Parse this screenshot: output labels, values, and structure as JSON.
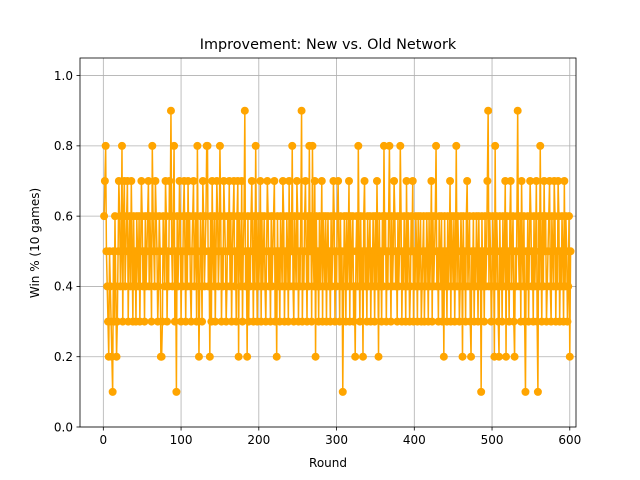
{
  "chart_data": {
    "type": "line",
    "title": "Improvement: New vs. Old Network",
    "xlabel": "Round",
    "ylabel": "Win % (10 games)",
    "xlim": [
      -30,
      608
    ],
    "ylim": [
      0.0,
      1.05
    ],
    "xticks": [
      0,
      100,
      200,
      300,
      400,
      500,
      600
    ],
    "yticks": [
      0.0,
      0.2,
      0.4,
      0.6,
      0.8,
      1.0
    ],
    "xtick_labels": [
      "0",
      "100",
      "200",
      "300",
      "400",
      "500",
      "600"
    ],
    "ytick_labels": [
      "0.0",
      "0.2",
      "0.4",
      "0.6",
      "0.8",
      "1.0"
    ],
    "grid": true,
    "series": [
      {
        "color": "#ffa500",
        "marker": "circle",
        "x_start": 1,
        "x_step": 1,
        "values": [
          0.6,
          0.7,
          0.8,
          0.5,
          0.4,
          0.3,
          0.2,
          0.5,
          0.4,
          0.3,
          0.2,
          0.1,
          0.5,
          0.3,
          0.6,
          0.4,
          0.2,
          0.3,
          0.5,
          0.7,
          0.6,
          0.4,
          0.5,
          0.8,
          0.3,
          0.6,
          0.7,
          0.4,
          0.5,
          0.6,
          0.7,
          0.3,
          0.5,
          0.6,
          0.4,
          0.7,
          0.5,
          0.3,
          0.6,
          0.4,
          0.5,
          0.3,
          0.6,
          0.5,
          0.4,
          0.6,
          0.3,
          0.5,
          0.7,
          0.6,
          0.4,
          0.5,
          0.3,
          0.6,
          0.4,
          0.5,
          0.6,
          0.7,
          0.4,
          0.6,
          0.5,
          0.3,
          0.8,
          0.6,
          0.5,
          0.4,
          0.7,
          0.6,
          0.5,
          0.3,
          0.4,
          0.6,
          0.5,
          0.2,
          0.2,
          0.3,
          0.6,
          0.5,
          0.4,
          0.7,
          0.6,
          0.3,
          0.5,
          0.4,
          0.7,
          0.6,
          0.9,
          0.5,
          0.4,
          0.6,
          0.8,
          0.3,
          0.5,
          0.1,
          0.6,
          0.4,
          0.5,
          0.7,
          0.6,
          0.3,
          0.5,
          0.4,
          0.6,
          0.7,
          0.5,
          0.3,
          0.6,
          0.4,
          0.7,
          0.5,
          0.6,
          0.4,
          0.3,
          0.5,
          0.6,
          0.7,
          0.4,
          0.5,
          0.6,
          0.3,
          0.8,
          0.5,
          0.2,
          0.4,
          0.6,
          0.5,
          0.3,
          0.7,
          0.6,
          0.4,
          0.5,
          0.6,
          0.8,
          0.8,
          0.4,
          0.5,
          0.2,
          0.6,
          0.3,
          0.7,
          0.5,
          0.4,
          0.6,
          0.3,
          0.5,
          0.7,
          0.6,
          0.4,
          0.5,
          0.8,
          0.6,
          0.3,
          0.5,
          0.4,
          0.7,
          0.6,
          0.5,
          0.3,
          0.4,
          0.6,
          0.5,
          0.7,
          0.4,
          0.6,
          0.3,
          0.5,
          0.6,
          0.7,
          0.4,
          0.5,
          0.3,
          0.6,
          0.7,
          0.2,
          0.6,
          0.5,
          0.4,
          0.7,
          0.3,
          0.5,
          0.6,
          0.9,
          0.4,
          0.5,
          0.2,
          0.6,
          0.3,
          0.5,
          0.4,
          0.6,
          0.7,
          0.5,
          0.3,
          0.6,
          0.4,
          0.8,
          0.5,
          0.3,
          0.6,
          0.4,
          0.5,
          0.7,
          0.3,
          0.6,
          0.4,
          0.5,
          0.6,
          0.4,
          0.3,
          0.5,
          0.7,
          0.6,
          0.4,
          0.5,
          0.3,
          0.6,
          0.4,
          0.5,
          0.6,
          0.7,
          0.3,
          0.5,
          0.2,
          0.6,
          0.4,
          0.5,
          0.3,
          0.6,
          0.5,
          0.4,
          0.7,
          0.6,
          0.3,
          0.5,
          0.4,
          0.6,
          0.5,
          0.3,
          0.7,
          0.4,
          0.6,
          0.5,
          0.8,
          0.4,
          0.3,
          0.6,
          0.5,
          0.4,
          0.7,
          0.6,
          0.3,
          0.5,
          0.4,
          0.6,
          0.9,
          0.3,
          0.5,
          0.4,
          0.6,
          0.7,
          0.5,
          0.3,
          0.6,
          0.4,
          0.8,
          0.5,
          0.6,
          0.3,
          0.8,
          0.5,
          0.4,
          0.7,
          0.2,
          0.6,
          0.4,
          0.5,
          0.3,
          0.6,
          0.4,
          0.5,
          0.7,
          0.3,
          0.6,
          0.5,
          0.4,
          0.6,
          0.3,
          0.5,
          0.6,
          0.4,
          0.5,
          0.3,
          0.6,
          0.4,
          0.5,
          0.7,
          0.6,
          0.3,
          0.5,
          0.4,
          0.6,
          0.7,
          0.5,
          0.3,
          0.6,
          0.4,
          0.5,
          0.1,
          0.4,
          0.6,
          0.5,
          0.3,
          0.6,
          0.4,
          0.5,
          0.7,
          0.3,
          0.6,
          0.4,
          0.5,
          0.6,
          0.3,
          0.4,
          0.2,
          0.5,
          0.6,
          0.4,
          0.8,
          0.5,
          0.3,
          0.6,
          0.4,
          0.5,
          0.2,
          0.6,
          0.7,
          0.4,
          0.5,
          0.3,
          0.6,
          0.4,
          0.5,
          0.6,
          0.3,
          0.5,
          0.4,
          0.6,
          0.5,
          0.3,
          0.6,
          0.4,
          0.7,
          0.5,
          0.2,
          0.6,
          0.4,
          0.5,
          0.3,
          0.6,
          0.4,
          0.8,
          0.5,
          0.6,
          0.3,
          0.5,
          0.4,
          0.6,
          0.8,
          0.5,
          0.3,
          0.6,
          0.4,
          0.5,
          0.7,
          0.6,
          0.4,
          0.5,
          0.3,
          0.6,
          0.4,
          0.5,
          0.8,
          0.6,
          0.3,
          0.5,
          0.4,
          0.6,
          0.5,
          0.3,
          0.7,
          0.4,
          0.6,
          0.5,
          0.3,
          0.4,
          0.6,
          0.5,
          0.7,
          0.3,
          0.5,
          0.4,
          0.6,
          0.5,
          0.3,
          0.6,
          0.4,
          0.5,
          0.6,
          0.3,
          0.4,
          0.5,
          0.6,
          0.3,
          0.5,
          0.4,
          0.6,
          0.5,
          0.3,
          0.6,
          0.4,
          0.5,
          0.7,
          0.3,
          0.6,
          0.4,
          0.5,
          0.6,
          0.8,
          0.4,
          0.5,
          0.3,
          0.6,
          0.5,
          0.4,
          0.6,
          0.3,
          0.5,
          0.2,
          0.6,
          0.4,
          0.5,
          0.3,
          0.6,
          0.4,
          0.5,
          0.7,
          0.3,
          0.6,
          0.5,
          0.4,
          0.6,
          0.3,
          0.5,
          0.8,
          0.4,
          0.6,
          0.5,
          0.3,
          0.4,
          0.6,
          0.5,
          0.2,
          0.6,
          0.4,
          0.5,
          0.3,
          0.6,
          0.7,
          0.4,
          0.5,
          0.6,
          0.3,
          0.2,
          0.5,
          0.4,
          0.6,
          0.3,
          0.5,
          0.4,
          0.6,
          0.5,
          0.3,
          0.6,
          0.4,
          0.5,
          0.1,
          0.6,
          0.4,
          0.5,
          0.3,
          0.6,
          0.4,
          0.5,
          0.7,
          0.9,
          0.4,
          0.6,
          0.5,
          0.3,
          0.4,
          0.6,
          0.5,
          0.2,
          0.8,
          0.4,
          0.6,
          0.5,
          0.3,
          0.2,
          0.6,
          0.4,
          0.5,
          0.3,
          0.6,
          0.4,
          0.5,
          0.7,
          0.2,
          0.6,
          0.4,
          0.5,
          0.3,
          0.6,
          0.7,
          0.4,
          0.5,
          0.6,
          0.3,
          0.2,
          0.5,
          0.4,
          0.6,
          0.9,
          0.5,
          0.4,
          0.6,
          0.3,
          0.7,
          0.5,
          0.4,
          0.6,
          0.3,
          0.1,
          0.5,
          0.4,
          0.6,
          0.3,
          0.5,
          0.7,
          0.6,
          0.4,
          0.5,
          0.3,
          0.6,
          0.4,
          0.5,
          0.7,
          0.3,
          0.1,
          0.6,
          0.4,
          0.8,
          0.5,
          0.3,
          0.6,
          0.4,
          0.7,
          0.5,
          0.6,
          0.3,
          0.4,
          0.5,
          0.6,
          0.7,
          0.4,
          0.3,
          0.6,
          0.5,
          0.4,
          0.7,
          0.6,
          0.3,
          0.5,
          0.4,
          0.7,
          0.6,
          0.3,
          0.5,
          0.4,
          0.6,
          0.5,
          0.3,
          0.7,
          0.4,
          0.6,
          0.5,
          0.3,
          0.4,
          0.6,
          0.2,
          0.5
        ]
      }
    ]
  }
}
